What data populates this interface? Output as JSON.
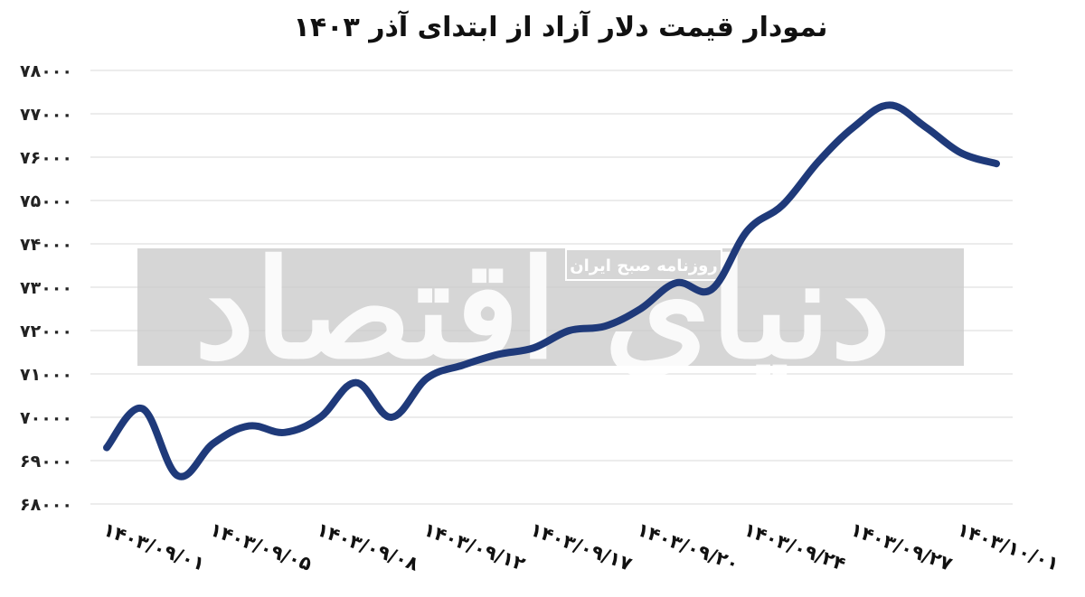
{
  "chart_data": {
    "type": "line",
    "title": "نمودار قیمت دلار آزاد از ابتدای آذر ۱۴۰۳",
    "xlabel": "",
    "ylabel": "",
    "ylim": [
      68000,
      78000
    ],
    "y_ticks": [
      "۶۸۰۰۰",
      "۶۹۰۰۰",
      "۷۰۰۰۰",
      "۷۱۰۰۰",
      "۷۲۰۰۰",
      "۷۳۰۰۰",
      "۷۴۰۰۰",
      "۷۵۰۰۰",
      "۷۶۰۰۰",
      "۷۷۰۰۰",
      "۷۸۰۰۰"
    ],
    "y_tick_values": [
      68000,
      69000,
      70000,
      71000,
      72000,
      73000,
      74000,
      75000,
      76000,
      77000,
      78000
    ],
    "x_ticks": [
      "۱۴۰۳/۰۹/۰۱",
      "۱۴۰۳/۰۹/۰۵",
      "۱۴۰۳/۰۹/۰۸",
      "۱۴۰۳/۰۹/۱۲",
      "۱۴۰۳/۰۹/۱۷",
      "۱۴۰۳/۰۹/۲۰",
      "۱۴۰۳/۰۹/۲۴",
      "۱۴۰۳/۰۹/۲۷",
      "۱۴۰۳/۱۰/۰۱"
    ],
    "x_tick_index": [
      0,
      3,
      6,
      9,
      12,
      15,
      18,
      21,
      24
    ],
    "grid": true,
    "legend": "none",
    "series": [
      {
        "values": [
          69300,
          70200,
          68650,
          69400,
          69800,
          69650,
          70000,
          70800,
          70000,
          70900,
          71200,
          71450,
          71600,
          72000,
          72100,
          72500,
          73100,
          72950,
          74300,
          74900,
          75900,
          76700,
          77200,
          76700,
          76100,
          75850
        ],
        "color": "#1f3a7a"
      }
    ]
  },
  "watermark": {
    "text": "دنیای اقتصاد",
    "subtext": "روزنامه صبح ایران"
  }
}
